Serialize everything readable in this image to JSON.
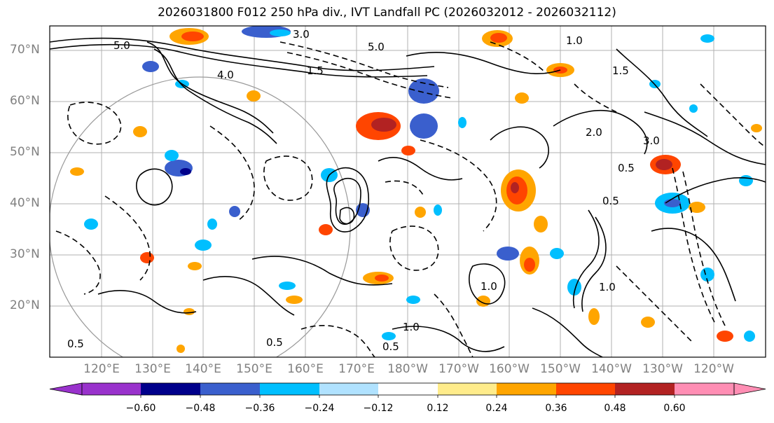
{
  "title": "2026031800 F012 250 hPa div., IVT Landfall PC (2026032012 - 2026032112)",
  "map": {
    "lat_labels": [
      "70°N",
      "60°N",
      "50°N",
      "40°N",
      "30°N",
      "20°N"
    ],
    "lon_labels": [
      "120°E",
      "130°E",
      "140°E",
      "150°E",
      "160°E",
      "170°E",
      "180°W",
      "170°W",
      "160°W",
      "150°W",
      "140°W",
      "130°W",
      "120°W"
    ],
    "contour_labels": [
      "3.0",
      "5.0",
      "5.0",
      "4.0",
      "1.0",
      "1.5",
      "3.0",
      "2.0",
      "0.5",
      "0.5",
      "1.0",
      "1.5",
      "1.0",
      "0.5",
      "0.5",
      "1.0",
      "0.5"
    ],
    "colors": {
      "frame": "#000000",
      "grid": "#b0b0b0",
      "contour": "#000000"
    }
  },
  "colorbar": {
    "ticks": [
      "−0.60",
      "−0.48",
      "−0.36",
      "−0.24",
      "−0.12",
      "0.12",
      "0.24",
      "0.36",
      "0.48",
      "0.60"
    ],
    "colors": [
      "#9932cc",
      "#00008b",
      "#3a5fcd",
      "#00bfff",
      "#b0e2ff",
      "#ffffff",
      "#ffec8b",
      "#ffa500",
      "#ff4500",
      "#b22222",
      "#ff8eb4"
    ]
  }
}
